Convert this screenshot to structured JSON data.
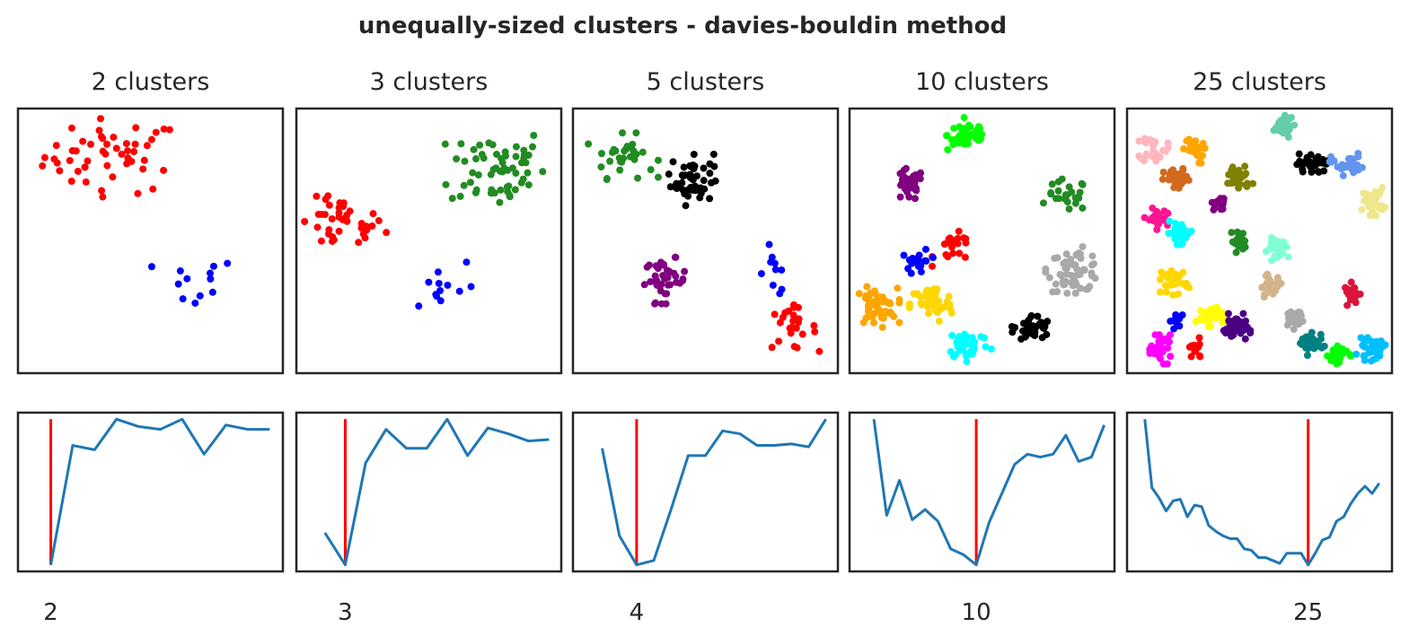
{
  "title": "unequally-sized clusters - davies-bouldin method",
  "chart_data": [
    {
      "type": "scatter",
      "title": "2 clusters",
      "clusters": [
        {
          "color": "#ff0000",
          "center": [
            0.36,
            0.82
          ],
          "spread": [
            0.13,
            0.07
          ],
          "count": 50
        },
        {
          "color": "#0000ff",
          "center": [
            0.67,
            0.34
          ],
          "spread": [
            0.08,
            0.05
          ],
          "count": 12
        }
      ],
      "score_line": {
        "type": "line",
        "best_k": 2,
        "xlim": [
          0.5,
          12.6
        ],
        "ylim": [
          -0.045,
          1.045
        ],
        "tick_label": "2",
        "x": [
          2,
          3,
          4,
          5,
          6,
          7,
          8,
          9,
          10,
          11,
          12
        ],
        "y": [
          0,
          0.82,
          0.79,
          1.0,
          0.95,
          0.93,
          1.0,
          0.76,
          0.96,
          0.93,
          0.93
        ]
      }
    },
    {
      "type": "scatter",
      "title": "3 clusters",
      "clusters": [
        {
          "color": "#ff0000",
          "center": [
            0.17,
            0.56
          ],
          "spread": [
            0.08,
            0.05
          ],
          "count": 40
        },
        {
          "color": "#228b22",
          "center": [
            0.76,
            0.78
          ],
          "spread": [
            0.09,
            0.08
          ],
          "count": 60
        },
        {
          "color": "#0000ff",
          "center": [
            0.54,
            0.33
          ],
          "spread": [
            0.07,
            0.06
          ],
          "count": 12
        }
      ],
      "score_line": {
        "type": "line",
        "best_k": 3,
        "xlim": [
          0.6,
          13.6
        ],
        "ylim": [
          -0.045,
          1.045
        ],
        "tick_label": "3",
        "x": [
          2,
          3,
          4,
          5,
          6,
          7,
          8,
          9,
          10,
          11,
          12,
          13
        ],
        "y": [
          0.22,
          0,
          0.7,
          0.93,
          0.8,
          0.8,
          1.0,
          0.75,
          0.94,
          0.9,
          0.85,
          0.86
        ]
      }
    },
    {
      "type": "scatter",
      "title": "5 clusters",
      "clusters": [
        {
          "color": "#228b22",
          "center": [
            0.19,
            0.82
          ],
          "spread": [
            0.06,
            0.04
          ],
          "count": 30
        },
        {
          "color": "#000000",
          "center": [
            0.45,
            0.74
          ],
          "spread": [
            0.04,
            0.05
          ],
          "count": 50
        },
        {
          "color": "#800080",
          "center": [
            0.35,
            0.35
          ],
          "spread": [
            0.04,
            0.04
          ],
          "count": 40
        },
        {
          "color": "#0000ff",
          "center": [
            0.76,
            0.39
          ],
          "spread": [
            0.03,
            0.05
          ],
          "count": 10
        },
        {
          "color": "#ff0000",
          "center": [
            0.82,
            0.17
          ],
          "spread": [
            0.05,
            0.04
          ],
          "count": 25
        }
      ],
      "score_line": {
        "type": "line",
        "best_k": 4,
        "xlim": [
          0.3,
          15.7
        ],
        "ylim": [
          -0.045,
          1.045
        ],
        "tick_label": "4",
        "x": [
          2,
          3,
          4,
          5,
          6,
          7,
          8,
          9,
          10,
          11,
          12,
          13,
          14,
          15
        ],
        "y": [
          0.8,
          0.2,
          0,
          0.03,
          0.38,
          0.75,
          0.75,
          0.92,
          0.9,
          0.82,
          0.82,
          0.83,
          0.81,
          1.0
        ]
      }
    },
    {
      "type": "scatter",
      "title": "10 clusters",
      "clusters": [
        {
          "color": "#00ff00",
          "center": [
            0.45,
            0.9
          ],
          "spread": [
            0.04,
            0.03
          ],
          "count": 45
        },
        {
          "color": "#800080",
          "center": [
            0.22,
            0.71
          ],
          "spread": [
            0.03,
            0.03
          ],
          "count": 30
        },
        {
          "color": "#228b22",
          "center": [
            0.82,
            0.67
          ],
          "spread": [
            0.04,
            0.03
          ],
          "count": 25
        },
        {
          "color": "#ff0000",
          "center": [
            0.4,
            0.47
          ],
          "spread": [
            0.04,
            0.03
          ],
          "count": 20
        },
        {
          "color": "#0000ff",
          "center": [
            0.26,
            0.42
          ],
          "spread": [
            0.025,
            0.025
          ],
          "count": 20
        },
        {
          "color": "#a9a9a9",
          "center": [
            0.85,
            0.39
          ],
          "spread": [
            0.05,
            0.04
          ],
          "count": 60
        },
        {
          "color": "#ffa500",
          "center": [
            0.1,
            0.25
          ],
          "spread": [
            0.04,
            0.035
          ],
          "count": 50
        },
        {
          "color": "#ffd700",
          "center": [
            0.31,
            0.26
          ],
          "spread": [
            0.04,
            0.035
          ],
          "count": 50
        },
        {
          "color": "#00ffff",
          "center": [
            0.45,
            0.11
          ],
          "spread": [
            0.04,
            0.03
          ],
          "count": 40
        },
        {
          "color": "#000000",
          "center": [
            0.69,
            0.17
          ],
          "spread": [
            0.035,
            0.025
          ],
          "count": 35
        }
      ],
      "score_line": {
        "type": "line",
        "best_k": 10,
        "xlim": [
          0.1,
          20.8
        ],
        "ylim": [
          -0.045,
          1.045
        ],
        "tick_label": "10",
        "x": [
          2,
          3,
          4,
          5,
          6,
          7,
          8,
          9,
          10,
          11,
          12,
          13,
          14,
          15,
          16,
          17,
          18,
          19,
          20
        ],
        "y": [
          1.0,
          0.34,
          0.58,
          0.31,
          0.38,
          0.3,
          0.11,
          0.07,
          0,
          0.29,
          0.49,
          0.69,
          0.76,
          0.74,
          0.76,
          0.89,
          0.71,
          0.74,
          0.96
        ]
      }
    },
    {
      "type": "scatter",
      "title": "25 clusters",
      "clusters": [
        {
          "color": "#ffb6c1",
          "center": [
            0.1,
            0.85
          ],
          "spread": [
            0.025,
            0.025
          ],
          "count": 30
        },
        {
          "color": "#66cdaa",
          "center": [
            0.58,
            0.93
          ],
          "spread": [
            0.025,
            0.02
          ],
          "count": 30
        },
        {
          "color": "#ffa500",
          "center": [
            0.25,
            0.84
          ],
          "spread": [
            0.02,
            0.025
          ],
          "count": 25
        },
        {
          "color": "#000000",
          "center": [
            0.7,
            0.79
          ],
          "spread": [
            0.03,
            0.02
          ],
          "count": 30
        },
        {
          "color": "#6495ed",
          "center": [
            0.83,
            0.79
          ],
          "spread": [
            0.03,
            0.02
          ],
          "count": 30
        },
        {
          "color": "#d2691e",
          "center": [
            0.19,
            0.73
          ],
          "spread": [
            0.025,
            0.02
          ],
          "count": 35
        },
        {
          "color": "#808000",
          "center": [
            0.42,
            0.74
          ],
          "spread": [
            0.025,
            0.025
          ],
          "count": 35
        },
        {
          "color": "#f0e68c",
          "center": [
            0.93,
            0.65
          ],
          "spread": [
            0.02,
            0.025
          ],
          "count": 30
        },
        {
          "color": "#800080",
          "center": [
            0.35,
            0.64
          ],
          "spread": [
            0.015,
            0.012
          ],
          "count": 15
        },
        {
          "color": "#ff1493",
          "center": [
            0.11,
            0.58
          ],
          "spread": [
            0.02,
            0.02
          ],
          "count": 25
        },
        {
          "color": "#00ffff",
          "center": [
            0.2,
            0.53
          ],
          "spread": [
            0.025,
            0.02
          ],
          "count": 30
        },
        {
          "color": "#228b22",
          "center": [
            0.42,
            0.5
          ],
          "spread": [
            0.015,
            0.02
          ],
          "count": 20
        },
        {
          "color": "#7fffd4",
          "center": [
            0.58,
            0.47
          ],
          "spread": [
            0.025,
            0.02
          ],
          "count": 30
        },
        {
          "color": "#ffd700",
          "center": [
            0.18,
            0.35
          ],
          "spread": [
            0.025,
            0.025
          ],
          "count": 30
        },
        {
          "color": "#d2b48c",
          "center": [
            0.54,
            0.33
          ],
          "spread": [
            0.025,
            0.02
          ],
          "count": 25
        },
        {
          "color": "#dc143c",
          "center": [
            0.85,
            0.3
          ],
          "spread": [
            0.015,
            0.02
          ],
          "count": 20
        },
        {
          "color": "#0000ff",
          "center": [
            0.19,
            0.2
          ],
          "spread": [
            0.012,
            0.015
          ],
          "count": 15
        },
        {
          "color": "#ffff00",
          "center": [
            0.31,
            0.22
          ],
          "spread": [
            0.025,
            0.02
          ],
          "count": 30
        },
        {
          "color": "#4b0082",
          "center": [
            0.41,
            0.17
          ],
          "spread": [
            0.025,
            0.025
          ],
          "count": 35
        },
        {
          "color": "#a9a9a9",
          "center": [
            0.63,
            0.21
          ],
          "spread": [
            0.02,
            0.02
          ],
          "count": 25
        },
        {
          "color": "#ff00ff",
          "center": [
            0.13,
            0.09
          ],
          "spread": [
            0.02,
            0.025
          ],
          "count": 35
        },
        {
          "color": "#ff0000",
          "center": [
            0.26,
            0.09
          ],
          "spread": [
            0.015,
            0.02
          ],
          "count": 15
        },
        {
          "color": "#008080",
          "center": [
            0.69,
            0.11
          ],
          "spread": [
            0.025,
            0.02
          ],
          "count": 35
        },
        {
          "color": "#00ff00",
          "center": [
            0.8,
            0.07
          ],
          "spread": [
            0.02,
            0.025
          ],
          "count": 30
        },
        {
          "color": "#00bfff",
          "center": [
            0.92,
            0.09
          ],
          "spread": [
            0.025,
            0.02
          ],
          "count": 30
        }
      ],
      "score_line": {
        "type": "line",
        "best_k": 25,
        "xlim": [
          -0.5,
          36.8
        ],
        "ylim": [
          -0.045,
          1.045
        ],
        "tick_label": "25",
        "x": [
          2,
          3,
          4,
          5,
          6,
          7,
          8,
          9,
          10,
          11,
          12,
          13,
          14,
          15,
          16,
          17,
          18,
          19,
          20,
          21,
          22,
          23,
          24,
          25,
          26,
          27,
          28,
          29,
          30,
          31,
          32,
          33,
          34,
          35
        ],
        "y": [
          1.0,
          0.53,
          0.46,
          0.37,
          0.44,
          0.45,
          0.33,
          0.41,
          0.4,
          0.27,
          0.23,
          0.2,
          0.18,
          0.18,
          0.11,
          0.1,
          0.05,
          0.05,
          0.03,
          0.01,
          0.08,
          0.08,
          0.08,
          0,
          0.08,
          0.17,
          0.19,
          0.3,
          0.33,
          0.42,
          0.49,
          0.54,
          0.49,
          0.56
        ]
      }
    }
  ],
  "colors": {
    "line": "#1f77b4",
    "best_k_marker": "#ff0000",
    "frame": "#262626"
  }
}
